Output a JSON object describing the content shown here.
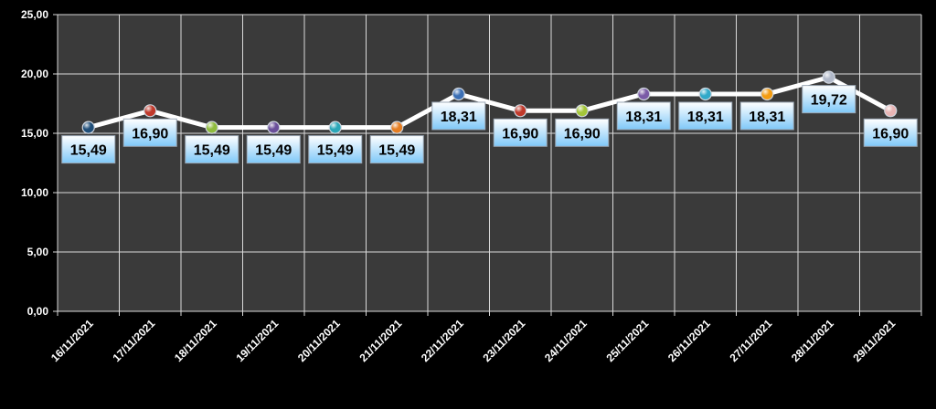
{
  "chart_data": {
    "type": "line",
    "categories": [
      "16/11/2021",
      "17/11/2021",
      "18/11/2021",
      "19/11/2021",
      "20/11/2021",
      "21/11/2021",
      "22/11/2021",
      "23/11/2021",
      "24/11/2021",
      "25/11/2021",
      "26/11/2021",
      "27/11/2021",
      "28/11/2021",
      "29/11/2021"
    ],
    "values": [
      15.49,
      16.9,
      15.49,
      15.49,
      15.49,
      15.49,
      18.31,
      16.9,
      16.9,
      18.31,
      18.31,
      18.31,
      19.72,
      16.9
    ],
    "data_labels": [
      "15,49",
      "16,90",
      "15,49",
      "15,49",
      "15,49",
      "15,49",
      "18,31",
      "16,90",
      "16,90",
      "18,31",
      "18,31",
      "18,31",
      "19,72",
      "16,90"
    ],
    "ylim": [
      0,
      25
    ],
    "yticks": [
      0,
      5,
      10,
      15,
      20,
      25
    ],
    "ytick_labels": [
      "0,00",
      "5,00",
      "10,00",
      "15,00",
      "20,00",
      "25,00"
    ],
    "grid": true,
    "legend": "none",
    "colors": {
      "background": "#000000",
      "plot_area": "#3a3a3a",
      "gridline": "#d9d9d9",
      "line": "#ffffff",
      "label_fill_top": "#ffffff",
      "label_fill_bottom": "#7fc8f8",
      "markers": [
        "#1f4e79",
        "#c0392b",
        "#8fbc3c",
        "#6a4f9a",
        "#2aa7b8",
        "#e67e22",
        "#3b6fb5",
        "#c0392b",
        "#a4c639",
        "#7a5aa6",
        "#31a9c9",
        "#f39c12",
        "#b0b8c8",
        "#e8b4b4"
      ]
    }
  }
}
